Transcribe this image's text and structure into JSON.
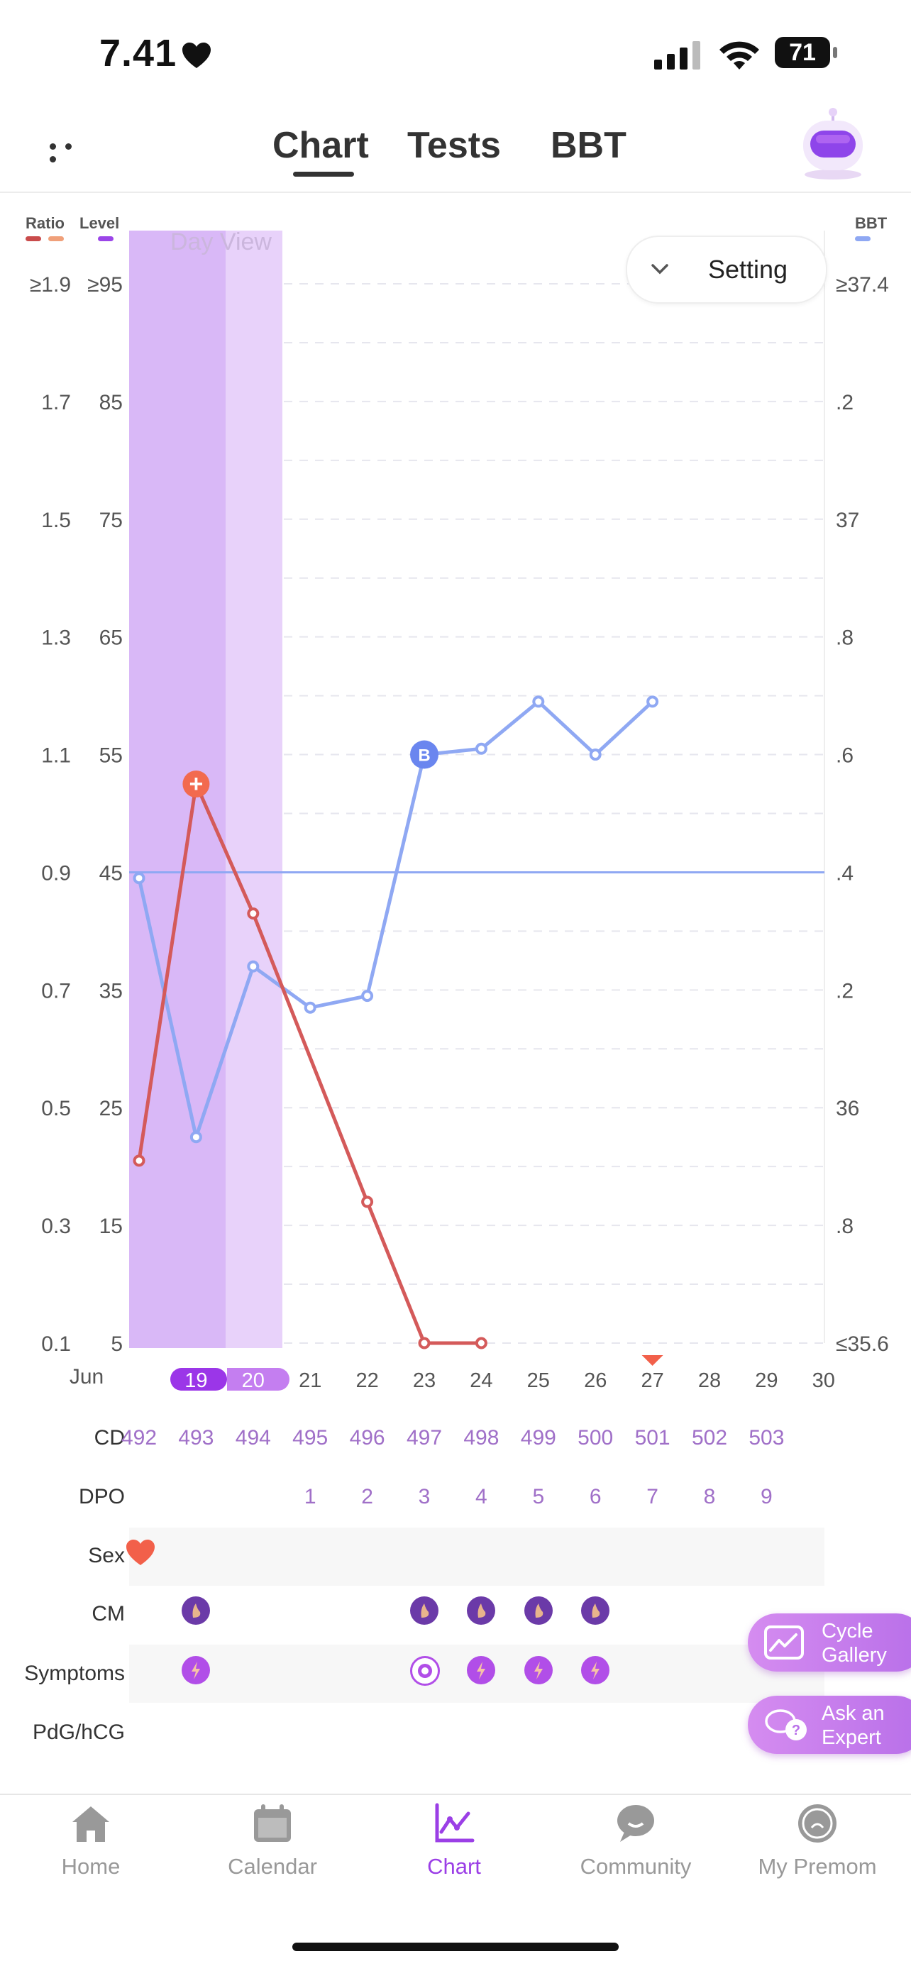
{
  "status_bar": {
    "time": "7.41",
    "battery": "71"
  },
  "top_nav": {
    "tabs": [
      {
        "label": "Chart",
        "active": true
      },
      {
        "label": "Tests",
        "active": false
      },
      {
        "label": "BBT",
        "active": false
      }
    ]
  },
  "chart": {
    "setting_label": "Setting",
    "day_view_label": "Day View",
    "legend": {
      "ratio": "Ratio",
      "level": "Level",
      "bbt": "BBT"
    },
    "ratio_ticks": [
      "≥1.9",
      "1.7",
      "1.5",
      "1.3",
      "1.1",
      "0.9",
      "0.7",
      "0.5",
      "0.3",
      "0.1"
    ],
    "level_ticks": [
      "≥95",
      "85",
      "75",
      "65",
      "55",
      "45",
      "35",
      "25",
      "15",
      "5"
    ],
    "bbt_ticks": [
      "≥37.4",
      ".2",
      "37",
      ".8",
      ".6",
      ".4",
      ".2",
      "36",
      ".8",
      "≤35.6"
    ],
    "month": "Jun",
    "days": [
      "19",
      "20",
      "21",
      "22",
      "23",
      "24",
      "25",
      "26",
      "27",
      "28",
      "29",
      "30"
    ],
    "colors": {
      "ratio": "#d45a5a",
      "bbt": "#8fa8f3",
      "highlight": "#b24de6",
      "marker_peak": "#f26a4f",
      "marker_b": "#6a86ef"
    }
  },
  "chart_data": {
    "type": "line",
    "x_start_day": 18,
    "x": [
      "18",
      "19",
      "20",
      "21",
      "22",
      "23",
      "24",
      "25",
      "26",
      "27"
    ],
    "series": [
      {
        "name": "Ratio",
        "axis": "ratio",
        "values": [
          0.41,
          1.05,
          0.83,
          null,
          0.34,
          0.1,
          0.1,
          null,
          null,
          null
        ]
      },
      {
        "name": "BBT",
        "axis": "bbt",
        "values": [
          36.39,
          35.95,
          36.24,
          36.17,
          36.19,
          36.6,
          36.61,
          36.69,
          36.6,
          36.69
        ]
      }
    ],
    "bbt_coverline": 36.4,
    "ratio_ylim": [
      0.1,
      1.9
    ],
    "bbt_ylim": [
      35.6,
      37.4
    ],
    "markers": [
      {
        "type": "peak",
        "symbol": "+",
        "day": "19",
        "axis": "ratio",
        "value": 1.05
      },
      {
        "type": "B",
        "symbol": "B",
        "day": "23",
        "axis": "bbt",
        "value": 36.6
      }
    ],
    "today_marker_day": "27"
  },
  "rows": {
    "cd": {
      "label": "CD",
      "values": [
        "492",
        "493",
        "494",
        "495",
        "496",
        "497",
        "498",
        "499",
        "500",
        "501",
        "502",
        "503"
      ]
    },
    "dpo": {
      "label": "DPO",
      "values": [
        "",
        "",
        "",
        "1",
        "2",
        "3",
        "4",
        "5",
        "6",
        "7",
        "8",
        "9"
      ]
    },
    "sex": {
      "label": "Sex"
    },
    "cm": {
      "label": "CM",
      "days": [
        "19",
        "23",
        "24",
        "25",
        "26"
      ]
    },
    "symptoms": {
      "label": "Symptoms",
      "days": [
        "19",
        "23",
        "24",
        "25",
        "26"
      ]
    },
    "pdg": {
      "label": "PdG/hCG"
    }
  },
  "floating": {
    "cycle_gallery": [
      "Cycle",
      "Gallery"
    ],
    "ask_expert": [
      "Ask an",
      "Expert"
    ]
  },
  "bottom_nav": [
    {
      "label": "Home",
      "icon": "home-icon",
      "active": false
    },
    {
      "label": "Calendar",
      "icon": "calendar-icon",
      "active": false
    },
    {
      "label": "Chart",
      "icon": "chart-icon",
      "active": true
    },
    {
      "label": "Community",
      "icon": "community-icon",
      "active": false
    },
    {
      "label": "My Premom",
      "icon": "my-premom-icon",
      "active": false
    }
  ]
}
